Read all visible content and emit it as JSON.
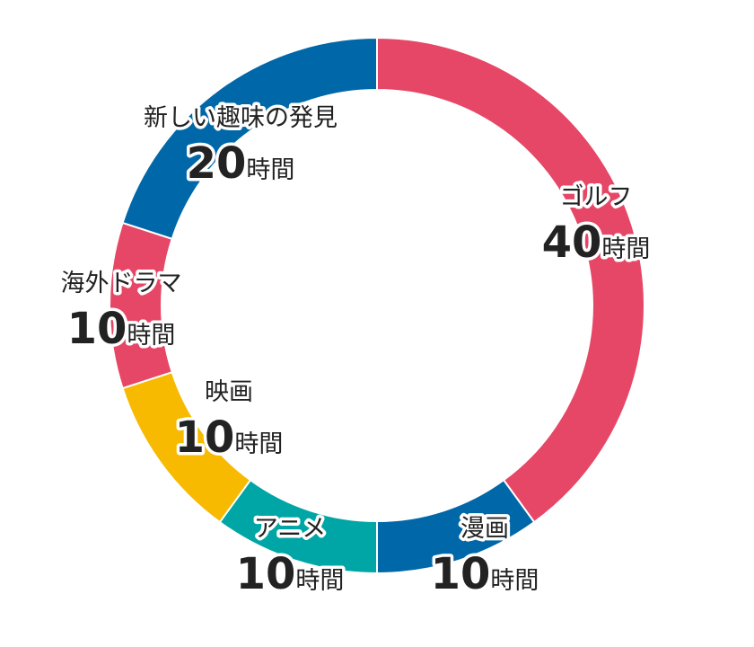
{
  "chart_data": {
    "type": "pie",
    "style": "donut",
    "unit": "時間",
    "slices": [
      {
        "label": "ゴルフ",
        "value": 40,
        "color": "#E64766"
      },
      {
        "label": "漫画",
        "value": 10,
        "color": "#0068A8"
      },
      {
        "label": "アニメ",
        "value": 10,
        "color": "#00A6A6"
      },
      {
        "label": "映画",
        "value": 10,
        "color": "#F7BA00"
      },
      {
        "label": "海外ドラマ",
        "value": 10,
        "color": "#E64766"
      },
      {
        "label": "新しい趣味の発見",
        "value": 20,
        "color": "#0068A8"
      }
    ]
  }
}
